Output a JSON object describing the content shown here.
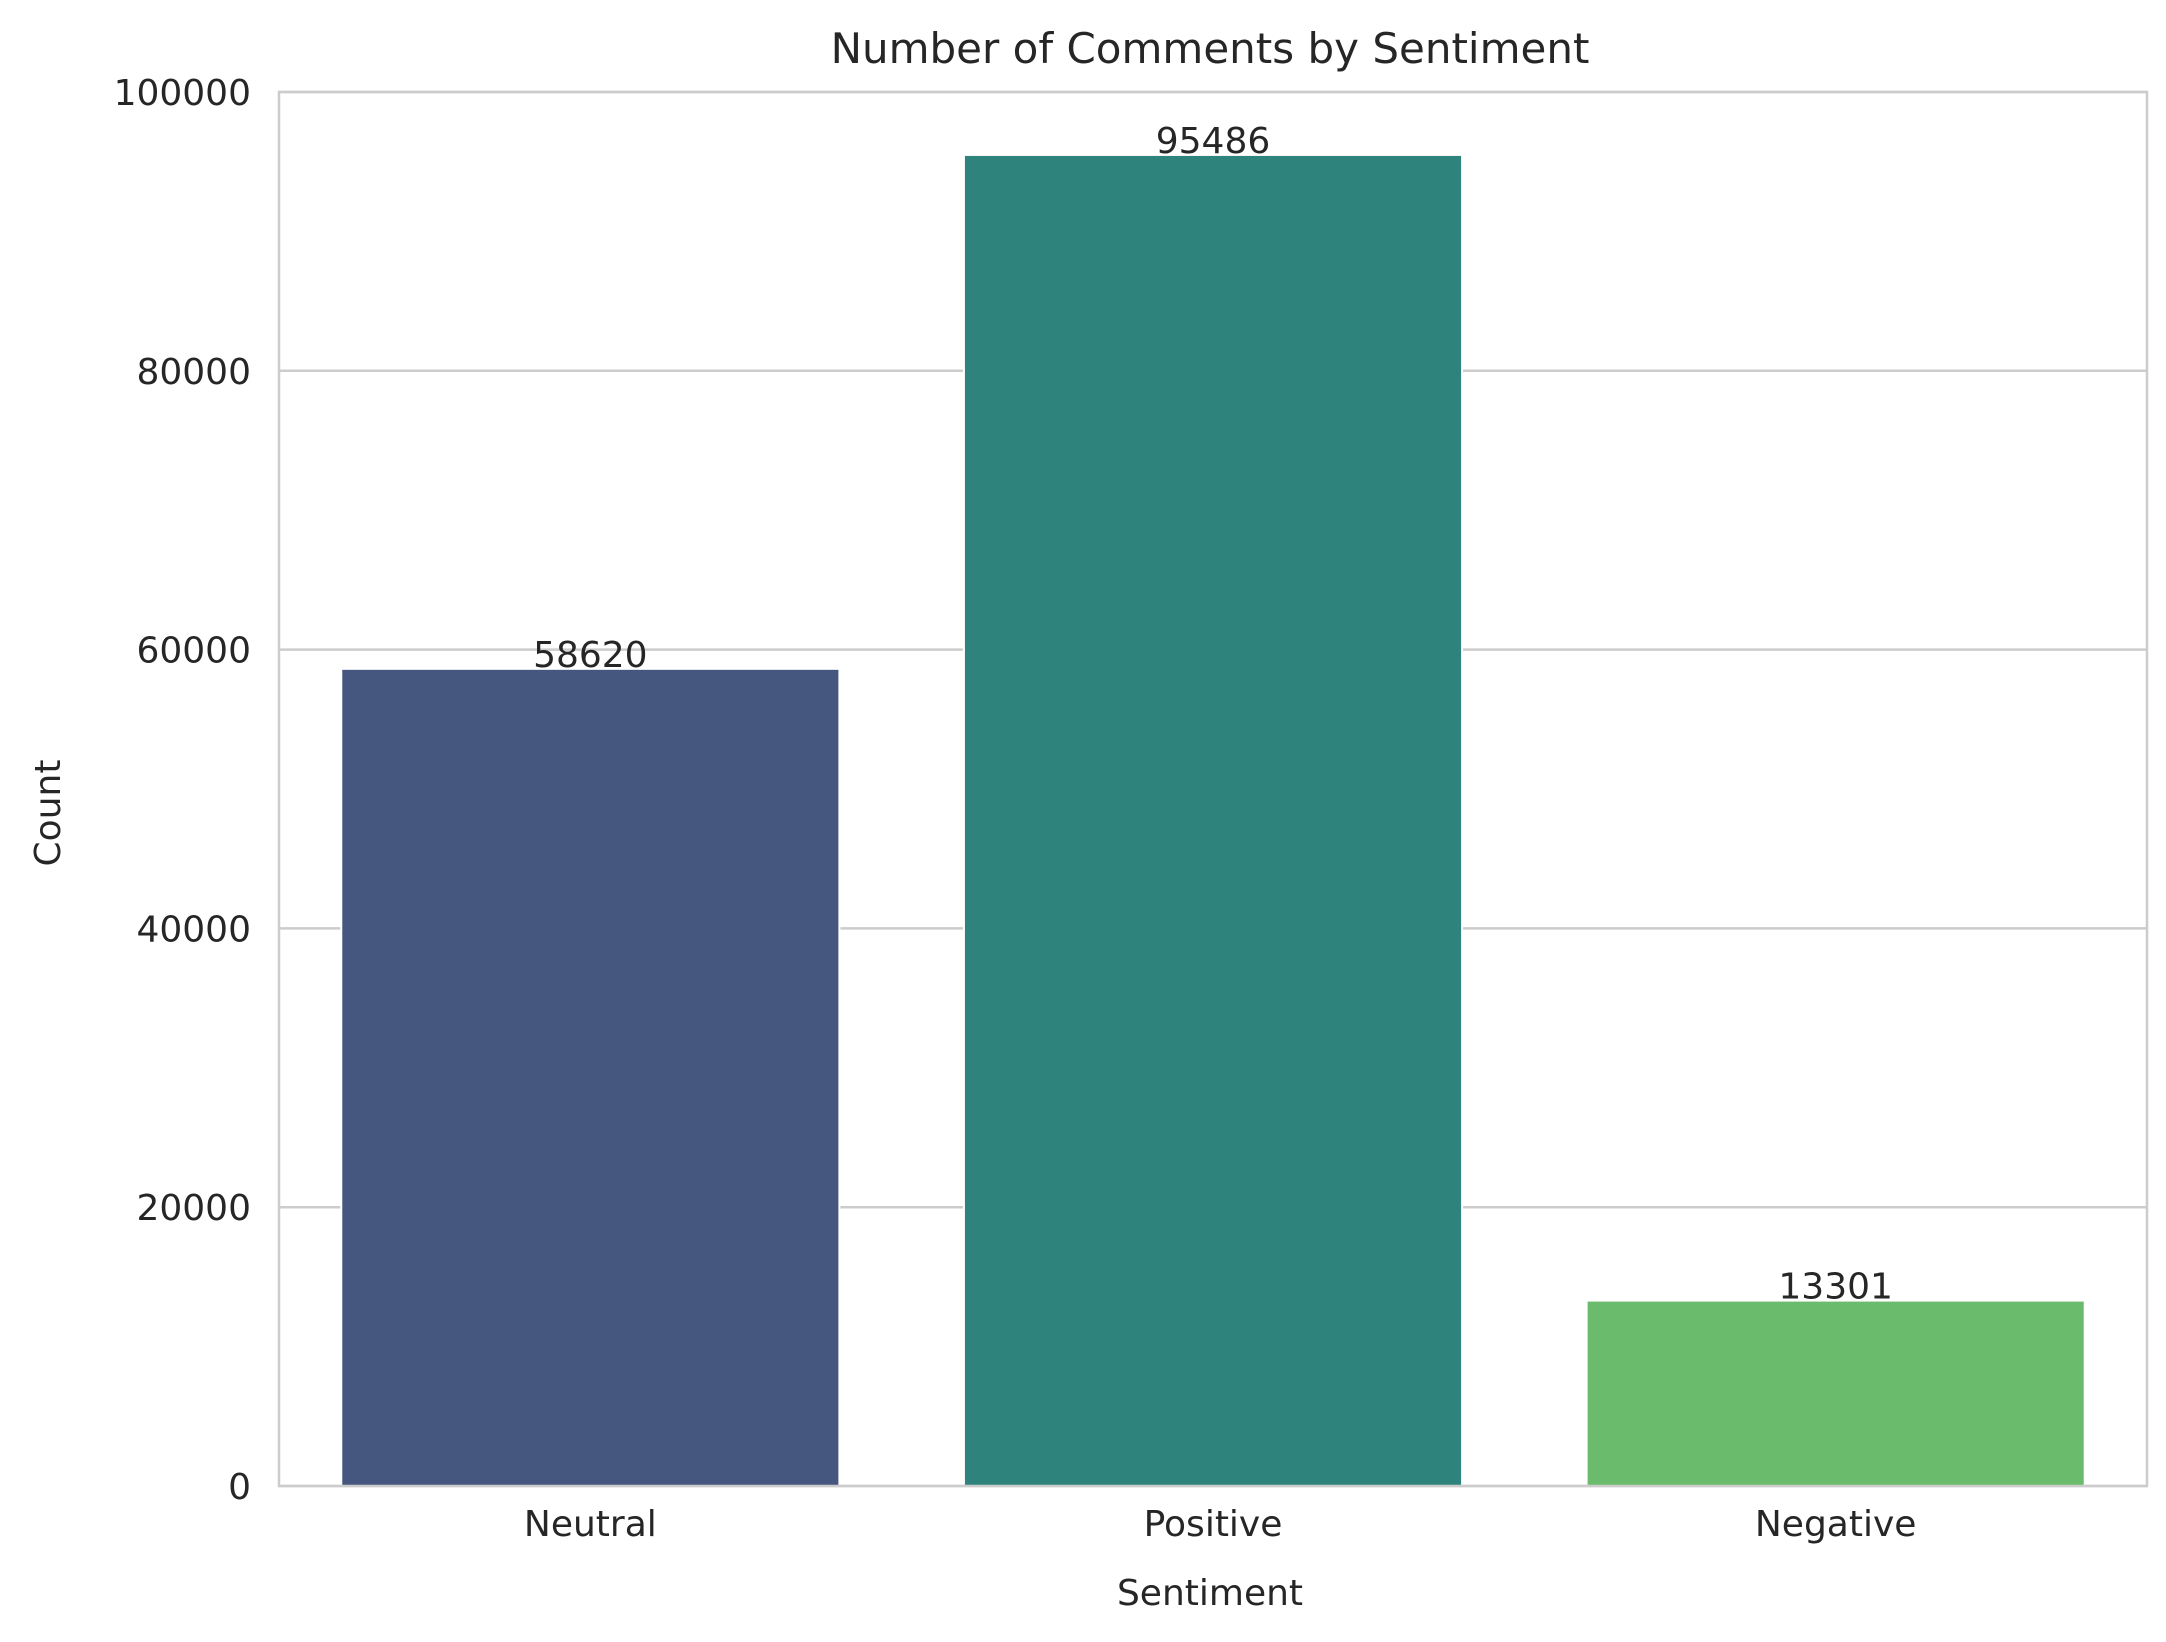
{
  "chart_data": {
    "type": "bar",
    "title": "Number of Comments by Sentiment",
    "xlabel": "Sentiment",
    "ylabel": "Count",
    "categories": [
      "Neutral",
      "Positive",
      "Negative"
    ],
    "values": [
      58620,
      95486,
      13301
    ],
    "data_labels": [
      "58620",
      "95486",
      "13301"
    ],
    "colors": [
      "#46577f",
      "#2e837d",
      "#6bbb6c"
    ],
    "ylim": [
      0,
      100000
    ],
    "yticks": [
      0,
      20000,
      40000,
      60000,
      80000,
      100000
    ],
    "ytick_labels": [
      "0",
      "20000",
      "40000",
      "60000",
      "80000",
      "100000"
    ],
    "grid": "y",
    "legend": "none"
  }
}
